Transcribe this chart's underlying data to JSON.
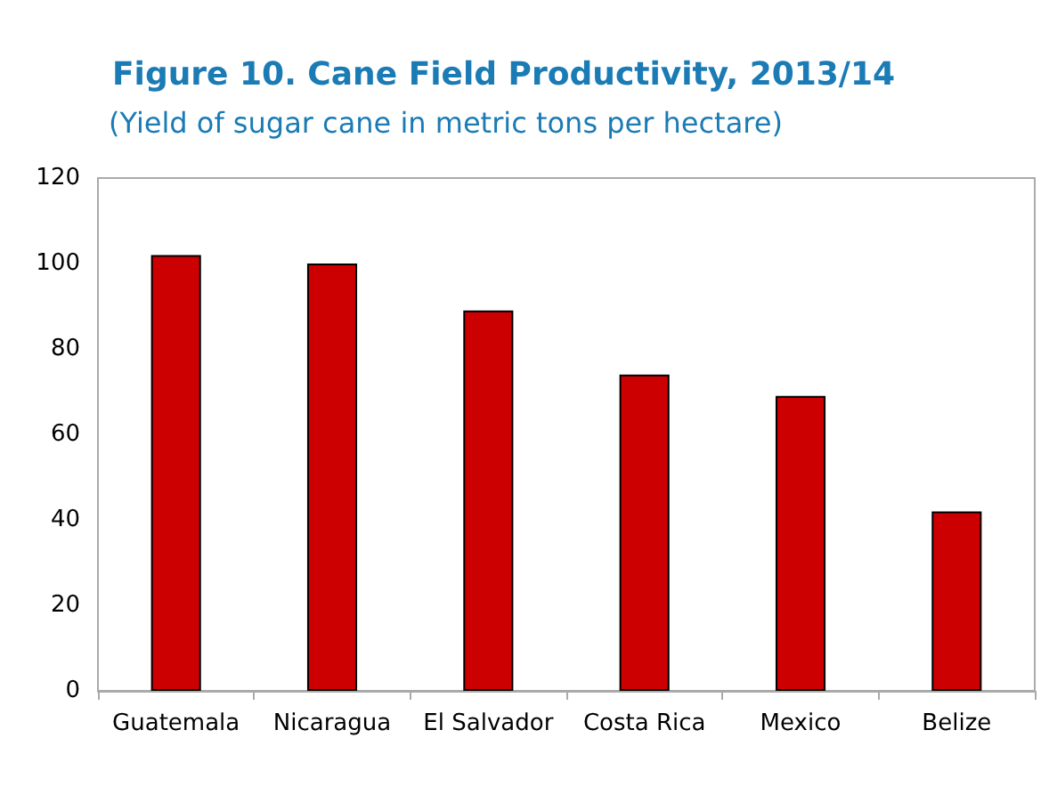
{
  "chart_data": {
    "type": "bar",
    "title": "Figure 10. Cane Field Productivity, 2013/14",
    "subtitle": "(Yield of sugar cane in metric tons per hectare)",
    "categories": [
      "Guatemala",
      "Nicaragua",
      "El Salvador",
      "Costa Rica",
      "Mexico",
      "Belize"
    ],
    "values": [
      102,
      100,
      89,
      74,
      69,
      42
    ],
    "color": "#cc0000",
    "ylim": [
      0,
      120
    ],
    "yticks": [
      0,
      20,
      40,
      60,
      80,
      100,
      120
    ],
    "grid": false
  }
}
